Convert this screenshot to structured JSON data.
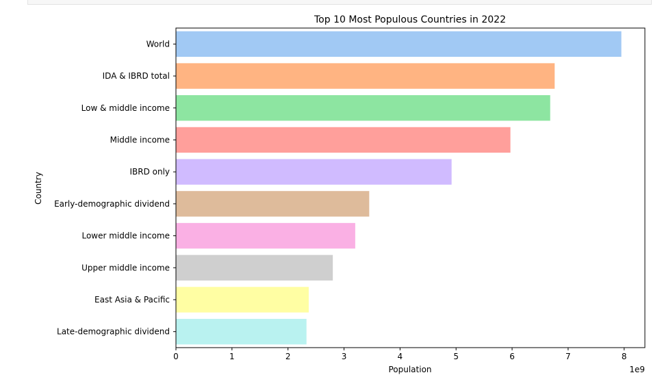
{
  "chart_data": {
    "type": "bar",
    "orientation": "horizontal",
    "title": "Top 10 Most Populous Countries in 2022",
    "xlabel": "Population",
    "ylabel": "Country",
    "x_scale_label": "1e9",
    "xlim": [
      0,
      8.37
    ],
    "xticks": [
      0,
      1,
      2,
      3,
      4,
      5,
      6,
      7,
      8
    ],
    "grid": false,
    "categories": [
      "World",
      "IDA & IBRD total",
      "Low & middle income",
      "Middle income",
      "IBRD only",
      "Early-demographic dividend",
      "Lower middle income",
      "Upper middle income",
      "East Asia & Pacific",
      "Late-demographic dividend"
    ],
    "values": [
      7.95,
      6.76,
      6.68,
      5.97,
      4.92,
      3.45,
      3.2,
      2.8,
      2.37,
      2.33
    ],
    "colors": [
      "#a1c9f4",
      "#ffb482",
      "#8de5a1",
      "#ff9f9b",
      "#d0bbff",
      "#debb9b",
      "#fab0e4",
      "#cfcfcf",
      "#fffea3",
      "#b9f2f0"
    ]
  }
}
